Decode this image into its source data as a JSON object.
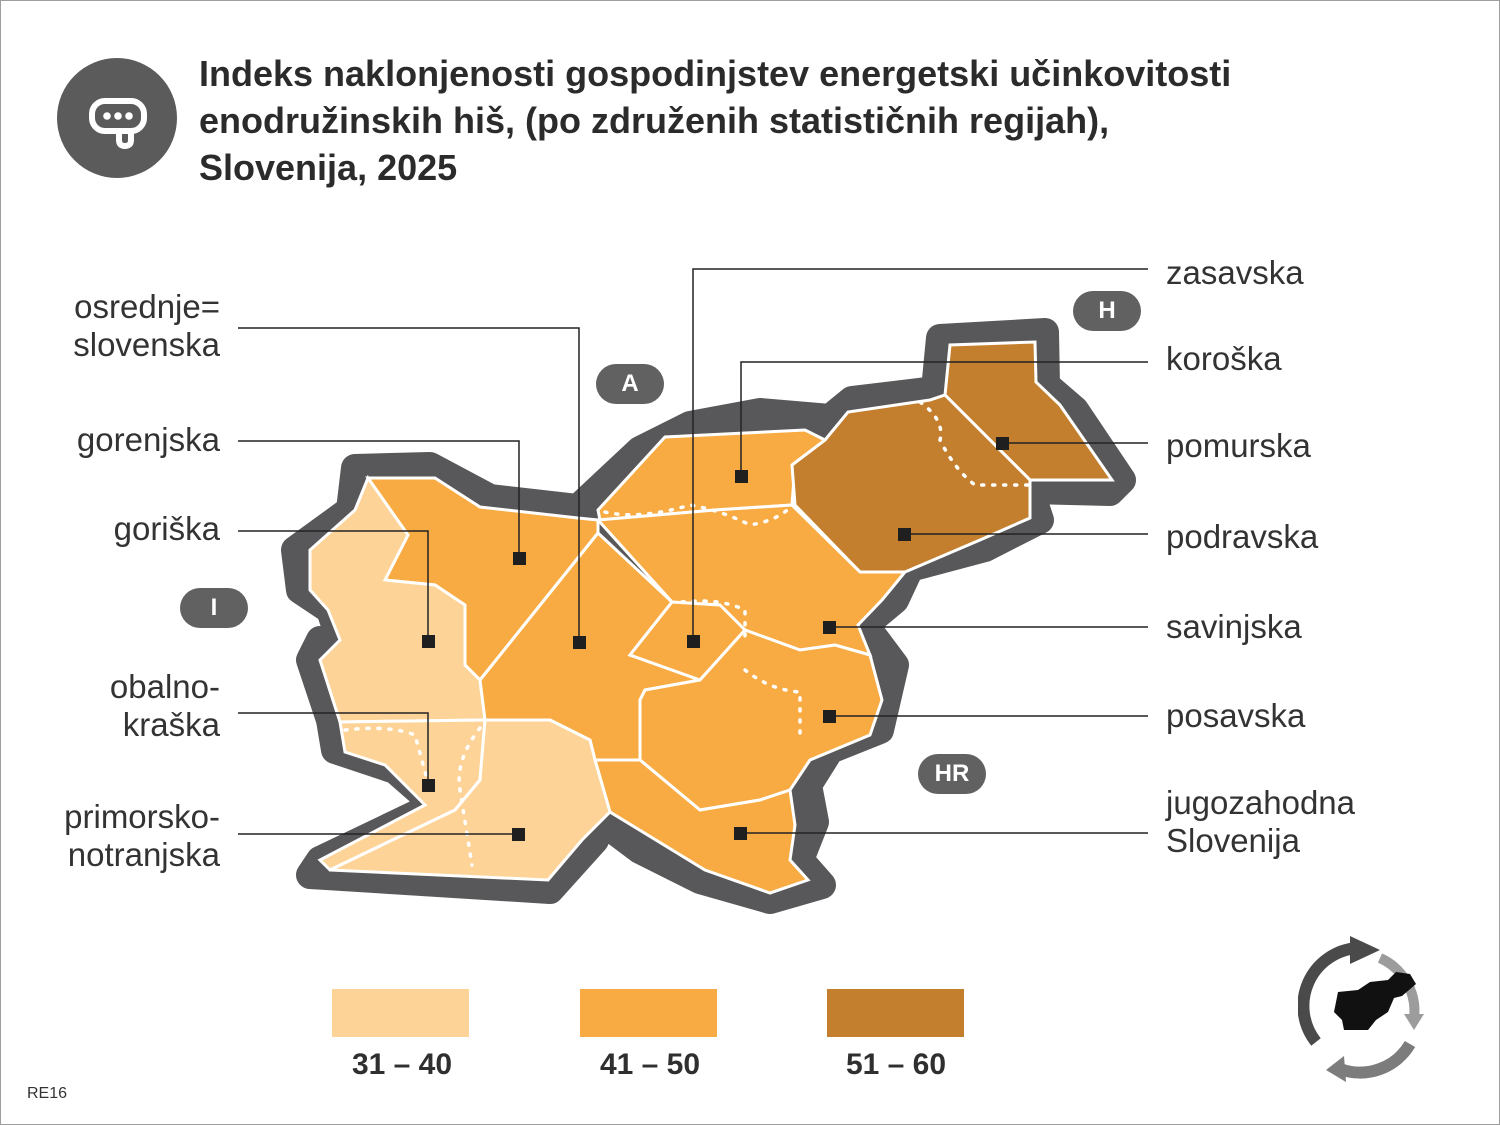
{
  "title": {
    "line1": "Indeks naklonjenosti gospodinjstev energetski učinkovitosti",
    "line2": "enodružinskih hiš, (po združenih statističnih regijah),",
    "line3": "Slovenija, 2025"
  },
  "icons": {
    "title_icon": "chat-bubble-icon",
    "logo": "slovenia-recycle-logo"
  },
  "colors": {
    "range_low": "#fed397",
    "range_mid": "#f9ab43",
    "range_high": "#c37f2d",
    "border": "#58585a"
  },
  "regions": {
    "osrednjeslovenska": {
      "line1": "osrednje=",
      "line2": "slovenska",
      "range": "41 – 50"
    },
    "gorenjska": {
      "label": "gorenjska",
      "range": "41 – 50"
    },
    "goriska": {
      "label": "goriška",
      "range": "31 – 40"
    },
    "obalnokraska": {
      "line1": "obalno-",
      "line2": "kraška",
      "range": "31 – 40"
    },
    "primorskonotranjska": {
      "line1": "primorsko-",
      "line2": "notranjska",
      "range": "31 – 40"
    },
    "zasavska": {
      "label": "zasavska",
      "range": "41 – 50"
    },
    "koroska": {
      "label": "koroška",
      "range": "41 – 50"
    },
    "pomurska": {
      "label": "pomurska",
      "range": "51 – 60"
    },
    "podravska": {
      "label": "podravska",
      "range": "51 – 60"
    },
    "savinjska": {
      "label": "savinjska",
      "range": "41 – 50"
    },
    "posavska": {
      "label": "posavska",
      "range": "41 – 50"
    },
    "jugovzhodna": {
      "line1": "jugozahodna",
      "line2": "Slovenija",
      "range": "41 – 50"
    }
  },
  "countries": {
    "austria": "A",
    "hungary": "H",
    "italy": "I",
    "croatia": "HR"
  },
  "legend": [
    {
      "label": "31 – 40",
      "color": "#fed397"
    },
    {
      "label": "41 – 50",
      "color": "#f9ab43"
    },
    {
      "label": "51 – 60",
      "color": "#c37f2d"
    }
  ],
  "code": "RE16"
}
